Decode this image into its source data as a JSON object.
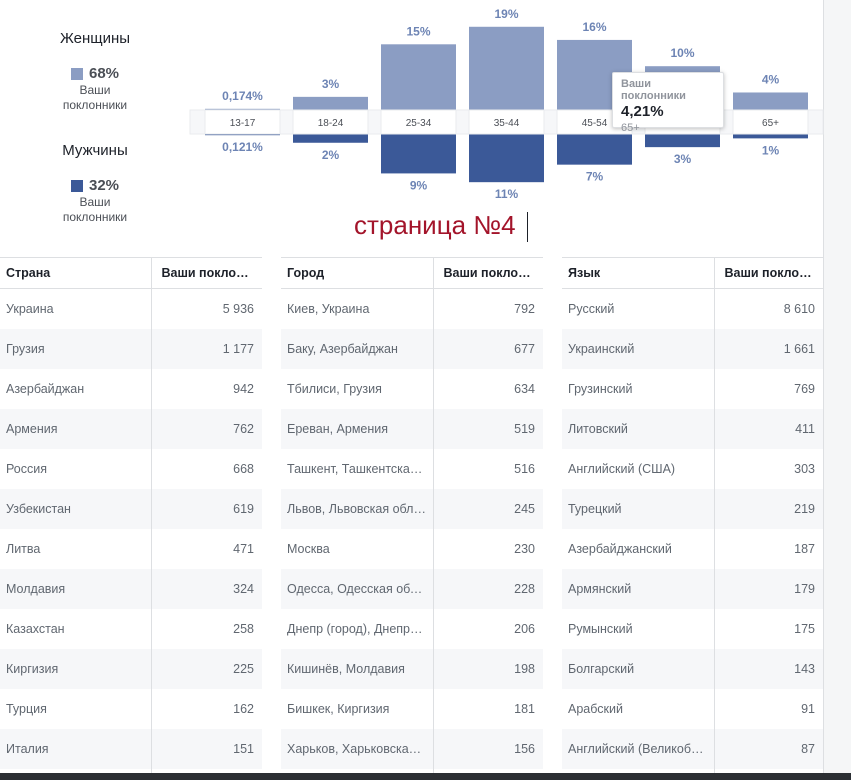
{
  "legend": {
    "women": {
      "title": "Женщины",
      "pct": "68%",
      "sub1": "Ваши",
      "sub2": "поклонники",
      "color": "#8b9dc3"
    },
    "men": {
      "title": "Мужчины",
      "pct": "32%",
      "sub1": "Ваши",
      "sub2": "поклонники",
      "color": "#3b5998"
    }
  },
  "chart_data": {
    "type": "bar",
    "categories": [
      "13-17",
      "18-24",
      "25-34",
      "35-44",
      "45-54",
      "55-64",
      "65+"
    ],
    "series": [
      {
        "name": "Женщины",
        "values": [
          0.174,
          3,
          15,
          19,
          16,
          10,
          4
        ],
        "labels": [
          "0,174%",
          "3%",
          "15%",
          "19%",
          "16%",
          "10%",
          "4%"
        ],
        "color": "#8b9dc3"
      },
      {
        "name": "Мужчины",
        "values": [
          0.121,
          2,
          9,
          11,
          7,
          3,
          1
        ],
        "labels": [
          "0,121%",
          "2%",
          "9%",
          "11%",
          "7%",
          "3%",
          "1%"
        ],
        "color": "#3b5998"
      }
    ],
    "label_color": "#6d84b4"
  },
  "tooltip": {
    "title": "Ваши поклонники",
    "value": "4,21%",
    "age": "65+"
  },
  "caption": "страница №4",
  "tables": [
    {
      "col1": "Страна",
      "col2": "Ваши поклонники",
      "rows": [
        [
          "Украина",
          "5 936"
        ],
        [
          "Грузия",
          "1 177"
        ],
        [
          "Азербайджан",
          "942"
        ],
        [
          "Армения",
          "762"
        ],
        [
          "Россия",
          "668"
        ],
        [
          "Узбекистан",
          "619"
        ],
        [
          "Литва",
          "471"
        ],
        [
          "Молдавия",
          "324"
        ],
        [
          "Казахстан",
          "258"
        ],
        [
          "Киргизия",
          "225"
        ],
        [
          "Турция",
          "162"
        ],
        [
          "Италия",
          "151"
        ],
        [
          "",
          ""
        ]
      ]
    },
    {
      "col1": "Город",
      "col2": "Ваши поклонники",
      "rows": [
        [
          "Киев, Украина",
          "792"
        ],
        [
          "Баку, Азербайджан",
          "677"
        ],
        [
          "Тбилиси, Грузия",
          "634"
        ],
        [
          "Ереван, Армения",
          "519"
        ],
        [
          "Ташкент, Ташкентская область",
          "516"
        ],
        [
          "Львов, Львовская область",
          "245"
        ],
        [
          "Москва",
          "230"
        ],
        [
          "Одесса, Одесская область",
          "228"
        ],
        [
          "Днепр (город), Днепропетровская область",
          "206"
        ],
        [
          "Кишинёв, Молдавия",
          "198"
        ],
        [
          "Бишкек, Киргизия",
          "181"
        ],
        [
          "Харьков, Харьковская область",
          "156"
        ],
        [
          "",
          ""
        ]
      ]
    },
    {
      "col1": "Язык",
      "col2": "Ваши поклонники",
      "rows": [
        [
          "Русский",
          "8 610"
        ],
        [
          "Украинский",
          "1 661"
        ],
        [
          "Грузинский",
          "769"
        ],
        [
          "Литовский",
          "411"
        ],
        [
          "Английский (США)",
          "303"
        ],
        [
          "Турецкий",
          "219"
        ],
        [
          "Азербайджанский",
          "187"
        ],
        [
          "Армянский",
          "179"
        ],
        [
          "Румынский",
          "175"
        ],
        [
          "Болгарский",
          "143"
        ],
        [
          "Арабский",
          "91"
        ],
        [
          "Английский (Великобритания)",
          "87"
        ],
        [
          "",
          ""
        ]
      ]
    }
  ]
}
